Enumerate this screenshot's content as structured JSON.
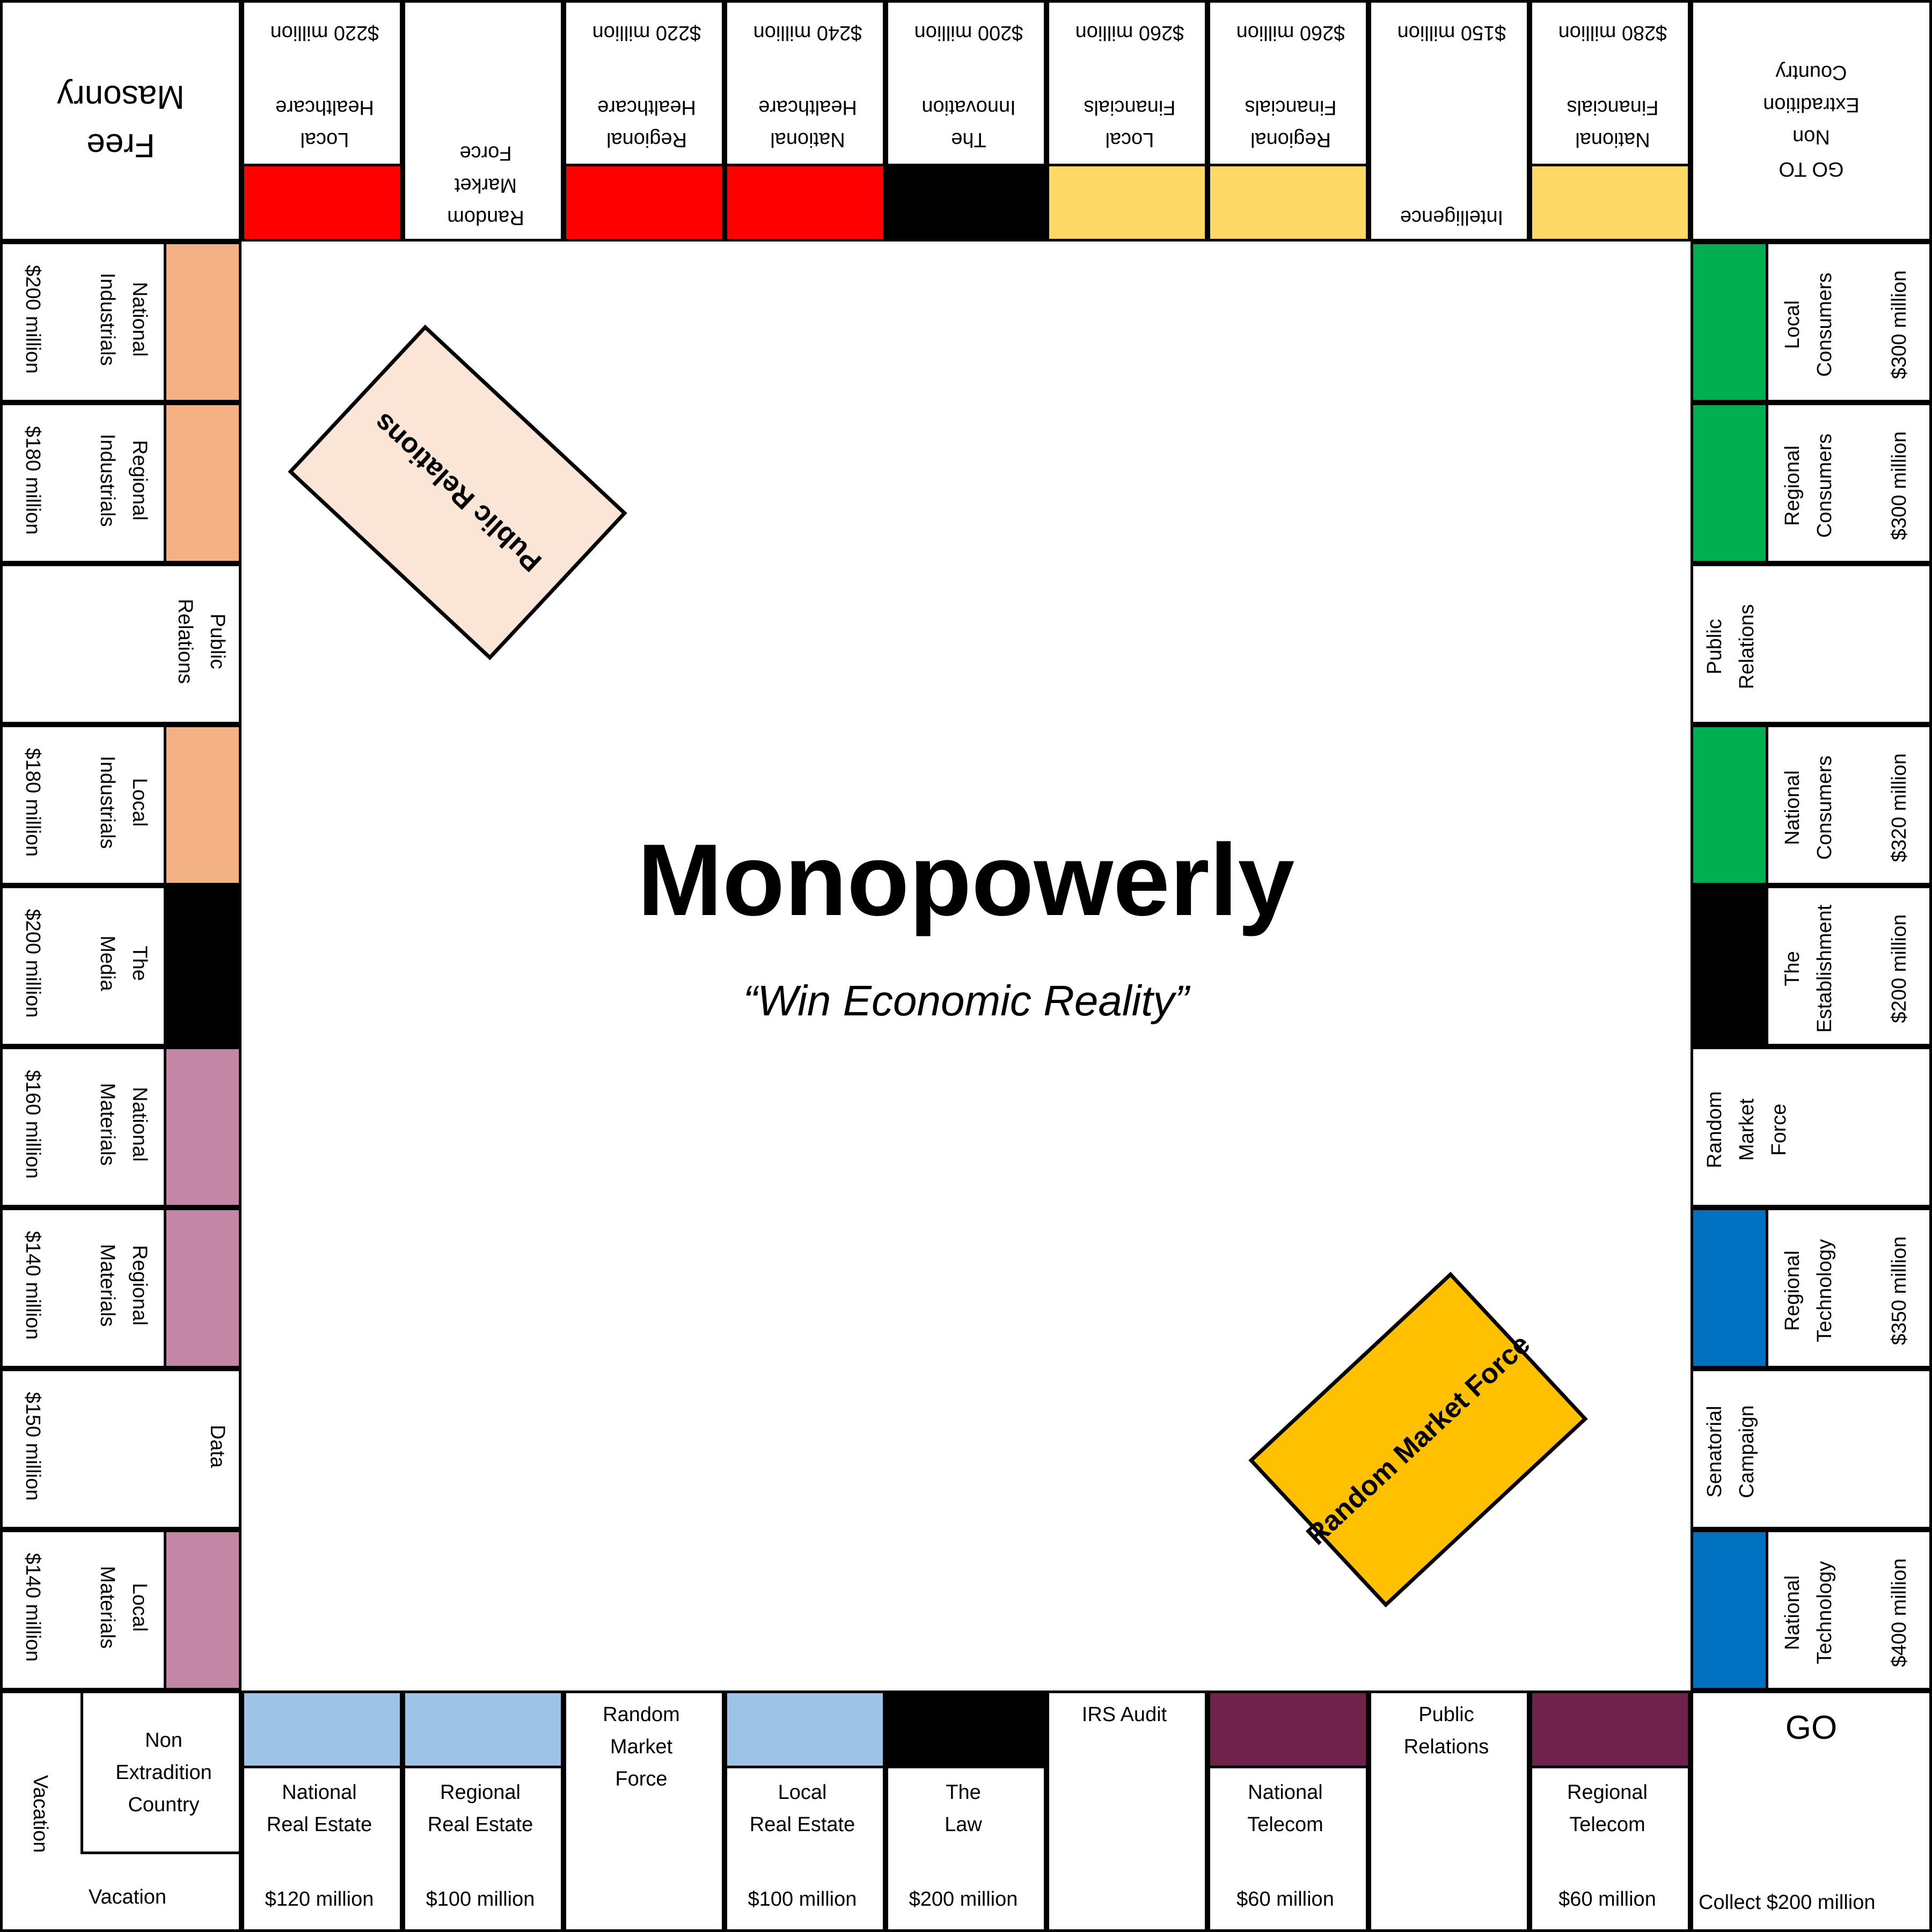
{
  "game": {
    "title": "Monopowerly",
    "tagline": "“Win Economic Reality”"
  },
  "colors": {
    "red": "#FF0000",
    "black": "#000000",
    "yellow": "#FFD966",
    "green": "#00B050",
    "blue": "#0070C0",
    "light_blue": "#9DC3E6",
    "maroon": "#70224A",
    "purple": "#C386A5",
    "orange": "#F4B183",
    "pr_card": "#FBE5D6",
    "rmf_card": "#FFC000"
  },
  "corners": {
    "go": {
      "label": "GO",
      "sub": "Collect $200 million"
    },
    "vacation": {
      "nonext": [
        "Non",
        "Extradition",
        "Country"
      ],
      "side": "Vacation",
      "bottom": "Vacation"
    },
    "free_masonry": {
      "lines": [
        "Free",
        "Masonry"
      ]
    },
    "go_to": {
      "lines": [
        "GO TO",
        "Non",
        "Extradition",
        "Country"
      ]
    }
  },
  "bottom": [
    {
      "lines": [
        "Regional",
        "Telecom"
      ],
      "price": "$60 million",
      "color": "#70224A"
    },
    {
      "lines": [
        "Public",
        "Relations"
      ],
      "price": "",
      "color": ""
    },
    {
      "lines": [
        "National",
        "Telecom"
      ],
      "price": "$60 million",
      "color": "#70224A"
    },
    {
      "lines": [
        "IRS Audit"
      ],
      "price": "",
      "color": ""
    },
    {
      "lines": [
        "The",
        "Law"
      ],
      "price": "$200 million",
      "color": "#000000"
    },
    {
      "lines": [
        "Local",
        "Real Estate"
      ],
      "price": "$100 million",
      "color": "#9DC3E6"
    },
    {
      "lines": [
        "Random",
        "Market",
        "Force"
      ],
      "price": "",
      "color": ""
    },
    {
      "lines": [
        "Regional",
        "Real Estate"
      ],
      "price": "$100 million",
      "color": "#9DC3E6"
    },
    {
      "lines": [
        "National",
        "Real Estate"
      ],
      "price": "$120 million",
      "color": "#9DC3E6"
    }
  ],
  "left": [
    {
      "lines": [
        "Local",
        "Materials"
      ],
      "price": "$140 million",
      "color": "#C386A5"
    },
    {
      "lines": [
        "Data"
      ],
      "price": "$150 million",
      "color": ""
    },
    {
      "lines": [
        "Regional",
        "Materials"
      ],
      "price": "$140 million",
      "color": "#C386A5"
    },
    {
      "lines": [
        "National",
        "Materials"
      ],
      "price": "$160 million",
      "color": "#C386A5"
    },
    {
      "lines": [
        "The",
        "Media"
      ],
      "price": "$200 million",
      "color": "#000000"
    },
    {
      "lines": [
        "Local",
        "Industrials"
      ],
      "price": "$180 million",
      "color": "#F4B183"
    },
    {
      "lines": [
        "Public",
        "Relations"
      ],
      "price": "",
      "color": ""
    },
    {
      "lines": [
        "Regional",
        "Industrials"
      ],
      "price": "$180 million",
      "color": "#F4B183"
    },
    {
      "lines": [
        "National",
        "Industrials"
      ],
      "price": "$200 million",
      "color": "#F4B183"
    }
  ],
  "top": [
    {
      "lines": [
        "Local",
        "Healthcare"
      ],
      "price": "$220 million",
      "color": "#FF0000"
    },
    {
      "lines": [
        "Random",
        "Market",
        "Force"
      ],
      "price": "",
      "color": ""
    },
    {
      "lines": [
        "Regional",
        "Healthcare"
      ],
      "price": "$220 million",
      "color": "#FF0000"
    },
    {
      "lines": [
        "National",
        "Healthcare"
      ],
      "price": "$240 million",
      "color": "#FF0000"
    },
    {
      "lines": [
        "The",
        "Innovation"
      ],
      "price": "$200 million",
      "color": "#000000"
    },
    {
      "lines": [
        "Local",
        "Financials"
      ],
      "price": "$260 million",
      "color": "#FFD966"
    },
    {
      "lines": [
        "Regional",
        "Financials"
      ],
      "price": "$260 million",
      "color": "#FFD966"
    },
    {
      "lines": [
        "Intelligence"
      ],
      "price": "$150 million",
      "color": ""
    },
    {
      "lines": [
        "National",
        "Financials"
      ],
      "price": "$280 million",
      "color": "#FFD966"
    }
  ],
  "right": [
    {
      "lines": [
        "Local",
        "Consumers"
      ],
      "price": "$300 million",
      "color": "#00B050"
    },
    {
      "lines": [
        "Regional",
        "Consumers"
      ],
      "price": "$300 million",
      "color": "#00B050"
    },
    {
      "lines": [
        "Public",
        "Relations"
      ],
      "price": "",
      "color": ""
    },
    {
      "lines": [
        "National",
        "Consumers"
      ],
      "price": "$320 million",
      "color": "#00B050"
    },
    {
      "lines": [
        "The",
        "Establishment"
      ],
      "price": "$200 million",
      "color": "#000000"
    },
    {
      "lines": [
        "Random",
        "Market",
        "Force"
      ],
      "price": "",
      "color": ""
    },
    {
      "lines": [
        "Regional",
        "Technology"
      ],
      "price": "$350 million",
      "color": "#0070C0"
    },
    {
      "lines": [
        "Senatorial",
        "Campaign"
      ],
      "price": "",
      "color": ""
    },
    {
      "lines": [
        "National",
        "Technology"
      ],
      "price": "$400 million",
      "color": "#0070C0"
    }
  ],
  "cards": {
    "public_relations": "Public Relations",
    "random_market_force": "Random Market Force"
  }
}
